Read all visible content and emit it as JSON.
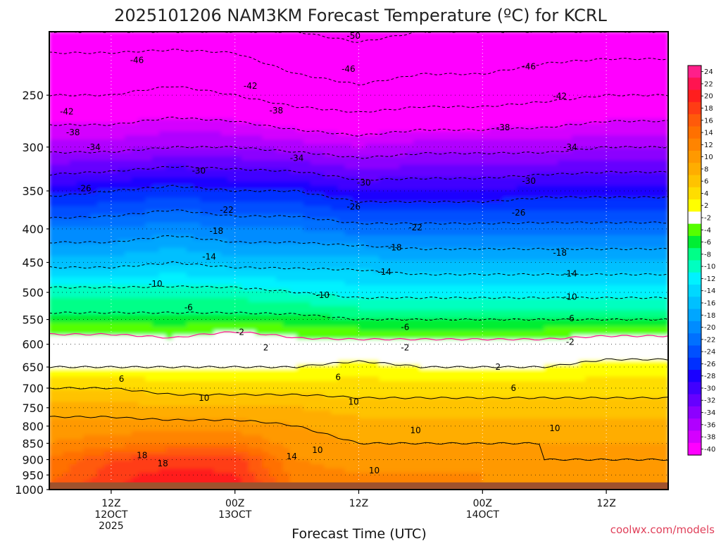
{
  "chart_data": {
    "type": "heatmap",
    "title": "2025101206 NAM3KM Forecast Temperature (ºC) for KCRL",
    "xlabel": "Forecast Time (UTC)",
    "ylabel": "",
    "y_scale": "log-pressure, inverted",
    "ylim": [
      1000,
      200
    ],
    "xlim_hours": [
      0,
      60
    ],
    "y_ticks": [
      250,
      300,
      350,
      400,
      450,
      500,
      550,
      600,
      650,
      700,
      750,
      800,
      850,
      900,
      950,
      1000
    ],
    "x_ticks": [
      {
        "hour": 6,
        "line1": "12Z",
        "line2": "12OCT",
        "line3": "2025"
      },
      {
        "hour": 18,
        "line1": "00Z",
        "line2": "13OCT",
        "line3": ""
      },
      {
        "hour": 30,
        "line1": "12Z",
        "line2": "",
        "line3": ""
      },
      {
        "hour": 42,
        "line1": "00Z",
        "line2": "14OCT",
        "line3": ""
      },
      {
        "hour": 54,
        "line1": "12Z",
        "line2": "",
        "line3": ""
      }
    ],
    "colorbar": {
      "values": [
        24,
        22,
        20,
        18,
        16,
        14,
        12,
        10,
        8,
        6,
        4,
        2,
        -2,
        -4,
        -6,
        -8,
        -10,
        -12,
        -14,
        -16,
        -18,
        -20,
        -22,
        -24,
        -26,
        -28,
        -30,
        -32,
        -34,
        -36,
        -38,
        -40
      ],
      "colors": [
        "#ff1f8a",
        "#ff1450",
        "#ff1e1e",
        "#ff3c14",
        "#ff5a0a",
        "#ff7000",
        "#ff8400",
        "#ff9900",
        "#ffad00",
        "#ffc300",
        "#ffdd00",
        "#ffff00",
        "#ffffff",
        "#55ff00",
        "#00ee33",
        "#00ff88",
        "#00ffc0",
        "#00f2ff",
        "#00d8ff",
        "#00c0ff",
        "#00a6ff",
        "#008cff",
        "#0070ff",
        "#0050ff",
        "#0030ff",
        "#1a00ff",
        "#4000ff",
        "#6600ff",
        "#8c00ff",
        "#b000ff",
        "#d400ff",
        "#ff00ff"
      ]
    },
    "temperature_by_time": {
      "pressure_levels_hpa": [
        1000,
        950,
        900,
        850,
        800,
        750,
        700,
        650,
        600,
        550,
        500,
        450,
        400,
        350,
        300,
        250,
        200
      ],
      "columns": [
        {
          "hour": 0,
          "temps": [
            17,
            15,
            14,
            12,
            11,
            9,
            6,
            2,
            0,
            -5,
            -9,
            -15,
            -20,
            -27,
            -35,
            -42,
            -48
          ]
        },
        {
          "hour": 6,
          "temps": [
            20,
            19,
            18,
            13,
            11,
            9,
            6,
            2,
            0,
            -5,
            -9,
            -15,
            -20,
            -26,
            -35,
            -42,
            -48
          ]
        },
        {
          "hour": 12,
          "temps": [
            22,
            21,
            19,
            14,
            11,
            8,
            5,
            2,
            -1,
            -5,
            -9,
            -14,
            -19,
            -25,
            -34,
            -41,
            -48
          ]
        },
        {
          "hour": 18,
          "temps": [
            22,
            20,
            19,
            14,
            11,
            8,
            5,
            2,
            1,
            -5,
            -9,
            -15,
            -20,
            -26,
            -34,
            -42,
            -48
          ]
        },
        {
          "hour": 24,
          "temps": [
            14,
            13,
            12,
            11,
            10,
            8,
            5,
            2,
            -1,
            -5,
            -10,
            -15,
            -20,
            -26,
            -35,
            -44,
            -50
          ]
        },
        {
          "hour": 30,
          "temps": [
            13,
            12,
            11,
            10,
            9,
            7,
            5,
            3,
            -1,
            -6,
            -11,
            -15,
            -21,
            -28,
            -36,
            -45,
            -51
          ]
        },
        {
          "hour": 36,
          "temps": [
            13,
            12,
            11,
            10,
            9,
            7,
            5,
            2,
            -1,
            -6,
            -11,
            -16,
            -21,
            -28,
            -35,
            -44,
            -50
          ]
        },
        {
          "hour": 42,
          "temps": [
            12,
            12,
            11,
            10,
            9,
            7,
            5,
            2,
            -1,
            -6,
            -11,
            -16,
            -21,
            -28,
            -35,
            -44,
            -50
          ]
        },
        {
          "hour": 48,
          "temps": [
            12,
            11,
            10,
            10,
            9,
            7,
            5,
            2,
            -1,
            -6,
            -11,
            -16,
            -21,
            -27,
            -35,
            -43,
            -49
          ]
        },
        {
          "hour": 54,
          "temps": [
            12,
            11,
            10,
            10,
            9,
            7,
            5,
            3,
            0,
            -6,
            -11,
            -16,
            -21,
            -27,
            -34,
            -42,
            -49
          ]
        },
        {
          "hour": 60,
          "temps": [
            12,
            11,
            10,
            10,
            9,
            7,
            5,
            3,
            0,
            -6,
            -11,
            -16,
            -21,
            -27,
            -34,
            -42,
            -49
          ]
        }
      ]
    },
    "contour_labels": [
      {
        "text": "-50",
        "hour": 29.5,
        "p": 203
      },
      {
        "text": "-46",
        "hour": 8.5,
        "p": 221
      },
      {
        "text": "-46",
        "hour": 29,
        "p": 228
      },
      {
        "text": "-46",
        "hour": 46.5,
        "p": 226
      },
      {
        "text": "-42",
        "hour": 19.5,
        "p": 242
      },
      {
        "text": "-42",
        "hour": 1.7,
        "p": 265
      },
      {
        "text": "-42",
        "hour": 49.5,
        "p": 251
      },
      {
        "text": "-38",
        "hour": 22,
        "p": 264
      },
      {
        "text": "-38",
        "hour": 2.3,
        "p": 285
      },
      {
        "text": "-38",
        "hour": 44,
        "p": 280
      },
      {
        "text": "-34",
        "hour": 4.3,
        "p": 300
      },
      {
        "text": "-34",
        "hour": 24,
        "p": 312
      },
      {
        "text": "-34",
        "hour": 50.5,
        "p": 300
      },
      {
        "text": "-30",
        "hour": 14.5,
        "p": 326
      },
      {
        "text": "-30",
        "hour": 30.5,
        "p": 340
      },
      {
        "text": "-30",
        "hour": 46.5,
        "p": 338
      },
      {
        "text": "-26",
        "hour": 3.4,
        "p": 347
      },
      {
        "text": "-26",
        "hour": 29.5,
        "p": 370
      },
      {
        "text": "-26",
        "hour": 45.5,
        "p": 378
      },
      {
        "text": "-22",
        "hour": 17.2,
        "p": 374
      },
      {
        "text": "-22",
        "hour": 35.5,
        "p": 398
      },
      {
        "text": "-18",
        "hour": 16.2,
        "p": 403
      },
      {
        "text": "-18",
        "hour": 33.5,
        "p": 427
      },
      {
        "text": "-18",
        "hour": 49.5,
        "p": 435
      },
      {
        "text": "-14",
        "hour": 15.5,
        "p": 441
      },
      {
        "text": "-14",
        "hour": 32.5,
        "p": 465
      },
      {
        "text": "-14",
        "hour": 50.5,
        "p": 468
      },
      {
        "text": "-10",
        "hour": 10.3,
        "p": 485
      },
      {
        "text": "-10",
        "hour": 26.5,
        "p": 505
      },
      {
        "text": "-10",
        "hour": 50.5,
        "p": 508
      },
      {
        "text": "-6",
        "hour": 13.5,
        "p": 527
      },
      {
        "text": "-6",
        "hour": 34.5,
        "p": 565
      },
      {
        "text": "-6",
        "hour": 50.5,
        "p": 548
      },
      {
        "text": "-2",
        "hour": 18.5,
        "p": 575
      },
      {
        "text": "-2",
        "hour": 34.5,
        "p": 607
      },
      {
        "text": "-2",
        "hour": 50.5,
        "p": 595
      },
      {
        "text": "2",
        "hour": 21,
        "p": 607
      },
      {
        "text": "2",
        "hour": 43.5,
        "p": 650
      },
      {
        "text": "6",
        "hour": 7,
        "p": 678
      },
      {
        "text": "6",
        "hour": 28,
        "p": 674
      },
      {
        "text": "6",
        "hour": 45,
        "p": 700
      },
      {
        "text": "10",
        "hour": 15,
        "p": 725
      },
      {
        "text": "10",
        "hour": 29.5,
        "p": 735
      },
      {
        "text": "10",
        "hour": 35.5,
        "p": 812
      },
      {
        "text": "10",
        "hour": 49,
        "p": 806
      },
      {
        "text": "10",
        "hour": 26,
        "p": 870
      },
      {
        "text": "10",
        "hour": 31.5,
        "p": 935
      },
      {
        "text": "14",
        "hour": 23.5,
        "p": 890
      },
      {
        "text": "18",
        "hour": 9,
        "p": 887
      },
      {
        "text": "18",
        "hour": 11,
        "p": 912
      }
    ],
    "terrain": {
      "surface_pressure_hpa": 975,
      "color": "#a0522d"
    }
  },
  "credit": "coolwx.com/models",
  "colors": {
    "background": "#ffffff",
    "frame": "#000000",
    "terrain": "#a0522d",
    "freezing_line": "#ff1493",
    "credit": "#e0405a"
  }
}
